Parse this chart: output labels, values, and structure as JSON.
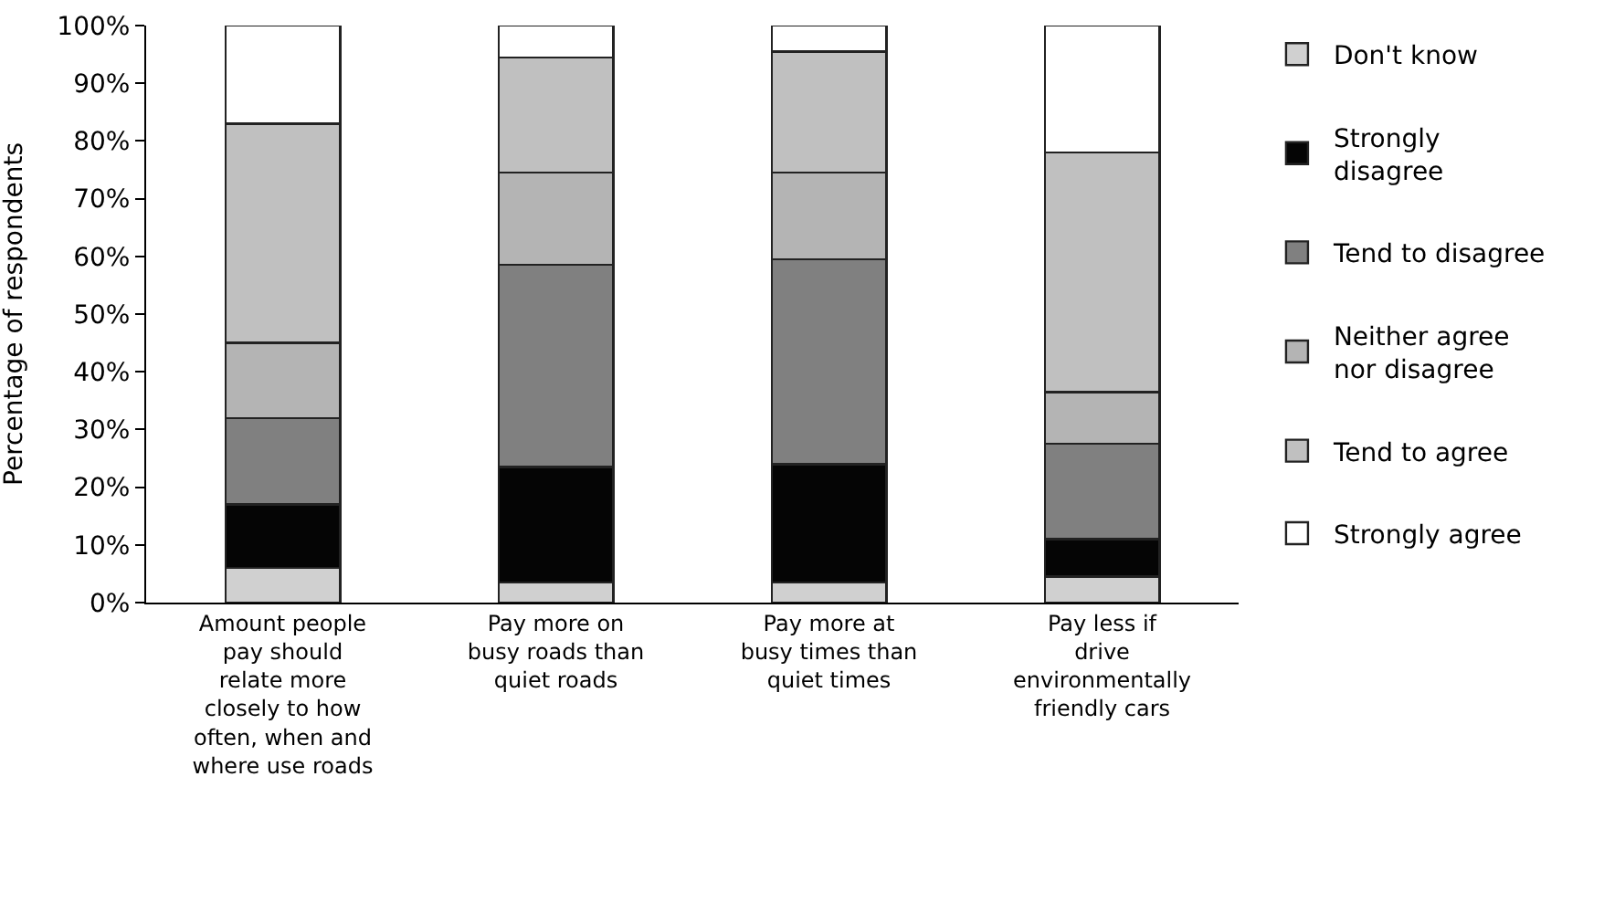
{
  "chart_data": {
    "type": "bar",
    "stacked": true,
    "ylabel": "Percentage of respondents",
    "categories": [
      "Amount people pay should relate more closely to how often, when and where use roads",
      "Pay more on busy roads than quiet roads",
      "Pay more at busy times than quiet times",
      "Pay less if drive environmentally friendly cars"
    ],
    "series": [
      {
        "name": "Don't know",
        "color": "#d0d0d0",
        "values": [
          6,
          3.5,
          3.5,
          4.5
        ]
      },
      {
        "name": "Strongly disagree",
        "color": "#050505",
        "values": [
          11,
          20,
          20.5,
          6.5
        ]
      },
      {
        "name": "Tend to disagree",
        "color": "#808080",
        "values": [
          15,
          35,
          35.5,
          16.5
        ]
      },
      {
        "name": "Neither agree nor disagree",
        "color": "#b4b4b4",
        "values": [
          13,
          16,
          15,
          9
        ]
      },
      {
        "name": "Tend to agree",
        "color": "#c0c0c0",
        "values": [
          38,
          20,
          21,
          41.5
        ]
      },
      {
        "name": "Strongly agree",
        "color": "#ffffff",
        "values": [
          17,
          5.5,
          4.5,
          22
        ]
      }
    ],
    "ylim": [
      0,
      100
    ],
    "yticks": [
      {
        "value": 0,
        "label": "0%"
      },
      {
        "value": 10,
        "label": "10%"
      },
      {
        "value": 20,
        "label": "20%"
      },
      {
        "value": 30,
        "label": "30%"
      },
      {
        "value": 40,
        "label": "40%"
      },
      {
        "value": 50,
        "label": "50%"
      },
      {
        "value": 60,
        "label": "60%"
      },
      {
        "value": 70,
        "label": "70%"
      },
      {
        "value": 80,
        "label": "80%"
      },
      {
        "value": 90,
        "label": "90%"
      },
      {
        "value": 100,
        "label": "100%"
      }
    ],
    "grid": false,
    "legend": "right"
  }
}
